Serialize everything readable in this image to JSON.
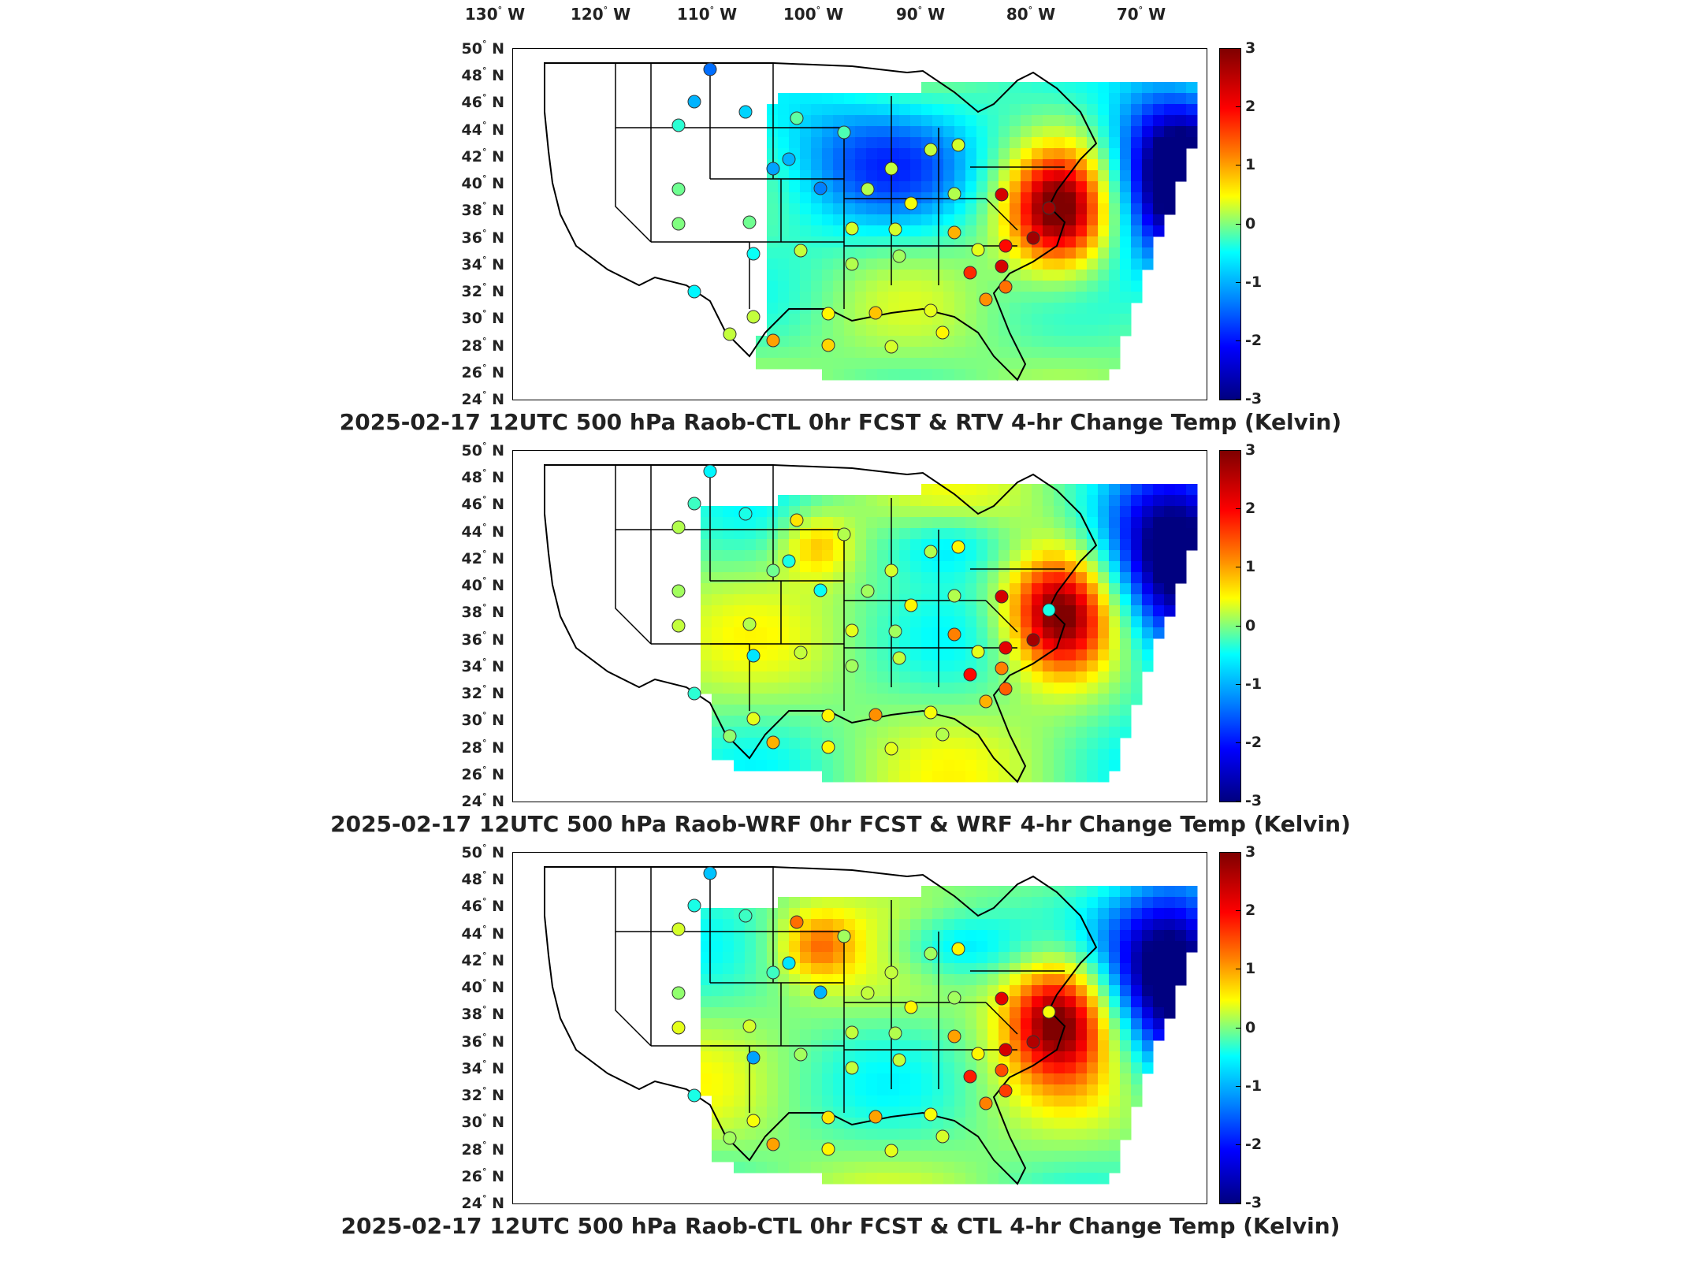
{
  "longitude_labels": [
    {
      "deg": "130",
      "hem": "W"
    },
    {
      "deg": "120",
      "hem": "W"
    },
    {
      "deg": "110",
      "hem": "W"
    },
    {
      "deg": "100",
      "hem": "W"
    },
    {
      "deg": "90",
      "hem": "W"
    },
    {
      "deg": "80",
      "hem": "W"
    },
    {
      "deg": "70",
      "hem": "W"
    }
  ],
  "latitude_labels": [
    {
      "deg": "50",
      "hem": "N"
    },
    {
      "deg": "48",
      "hem": "N"
    },
    {
      "deg": "46",
      "hem": "N"
    },
    {
      "deg": "44",
      "hem": "N"
    },
    {
      "deg": "42",
      "hem": "N"
    },
    {
      "deg": "40",
      "hem": "N"
    },
    {
      "deg": "38",
      "hem": "N"
    },
    {
      "deg": "36",
      "hem": "N"
    },
    {
      "deg": "34",
      "hem": "N"
    },
    {
      "deg": "32",
      "hem": "N"
    },
    {
      "deg": "30",
      "hem": "N"
    },
    {
      "deg": "28",
      "hem": "N"
    },
    {
      "deg": "26",
      "hem": "N"
    },
    {
      "deg": "24",
      "hem": "N"
    }
  ],
  "colorbar": {
    "ticks": [
      "3",
      "2",
      "1",
      "0",
      "-1",
      "-2",
      "-3"
    ],
    "range": [
      -3,
      3
    ],
    "colormap": "jet"
  },
  "panels": [
    {
      "title": "2025-02-17 12UTC 500 hPa Raob-CTL 0hr FCST & RTV 4-hr Change Temp (Kelvin)",
      "field": "RTV 4-hr Change"
    },
    {
      "title": "2025-02-17 12UTC 500 hPa Raob-WRF 0hr FCST & WRF 4-hr Change Temp (Kelvin)",
      "field": "WRF 4-hr Change"
    },
    {
      "title": "2025-02-17 12UTC 500 hPa Raob-CTL 0hr FCST & CTL 4-hr Change Temp (Kelvin)",
      "field": "CTL 4-hr Change"
    }
  ],
  "colors": {
    "dark_red": "#8b0000",
    "red": "#e8261c",
    "orange": "#ff8c1a",
    "yellow": "#f5e61e",
    "green": "#7ee07e",
    "cyan": "#3fd3f0",
    "blue": "#1a6fe0",
    "dark_blue": "#0a0a8c"
  }
}
